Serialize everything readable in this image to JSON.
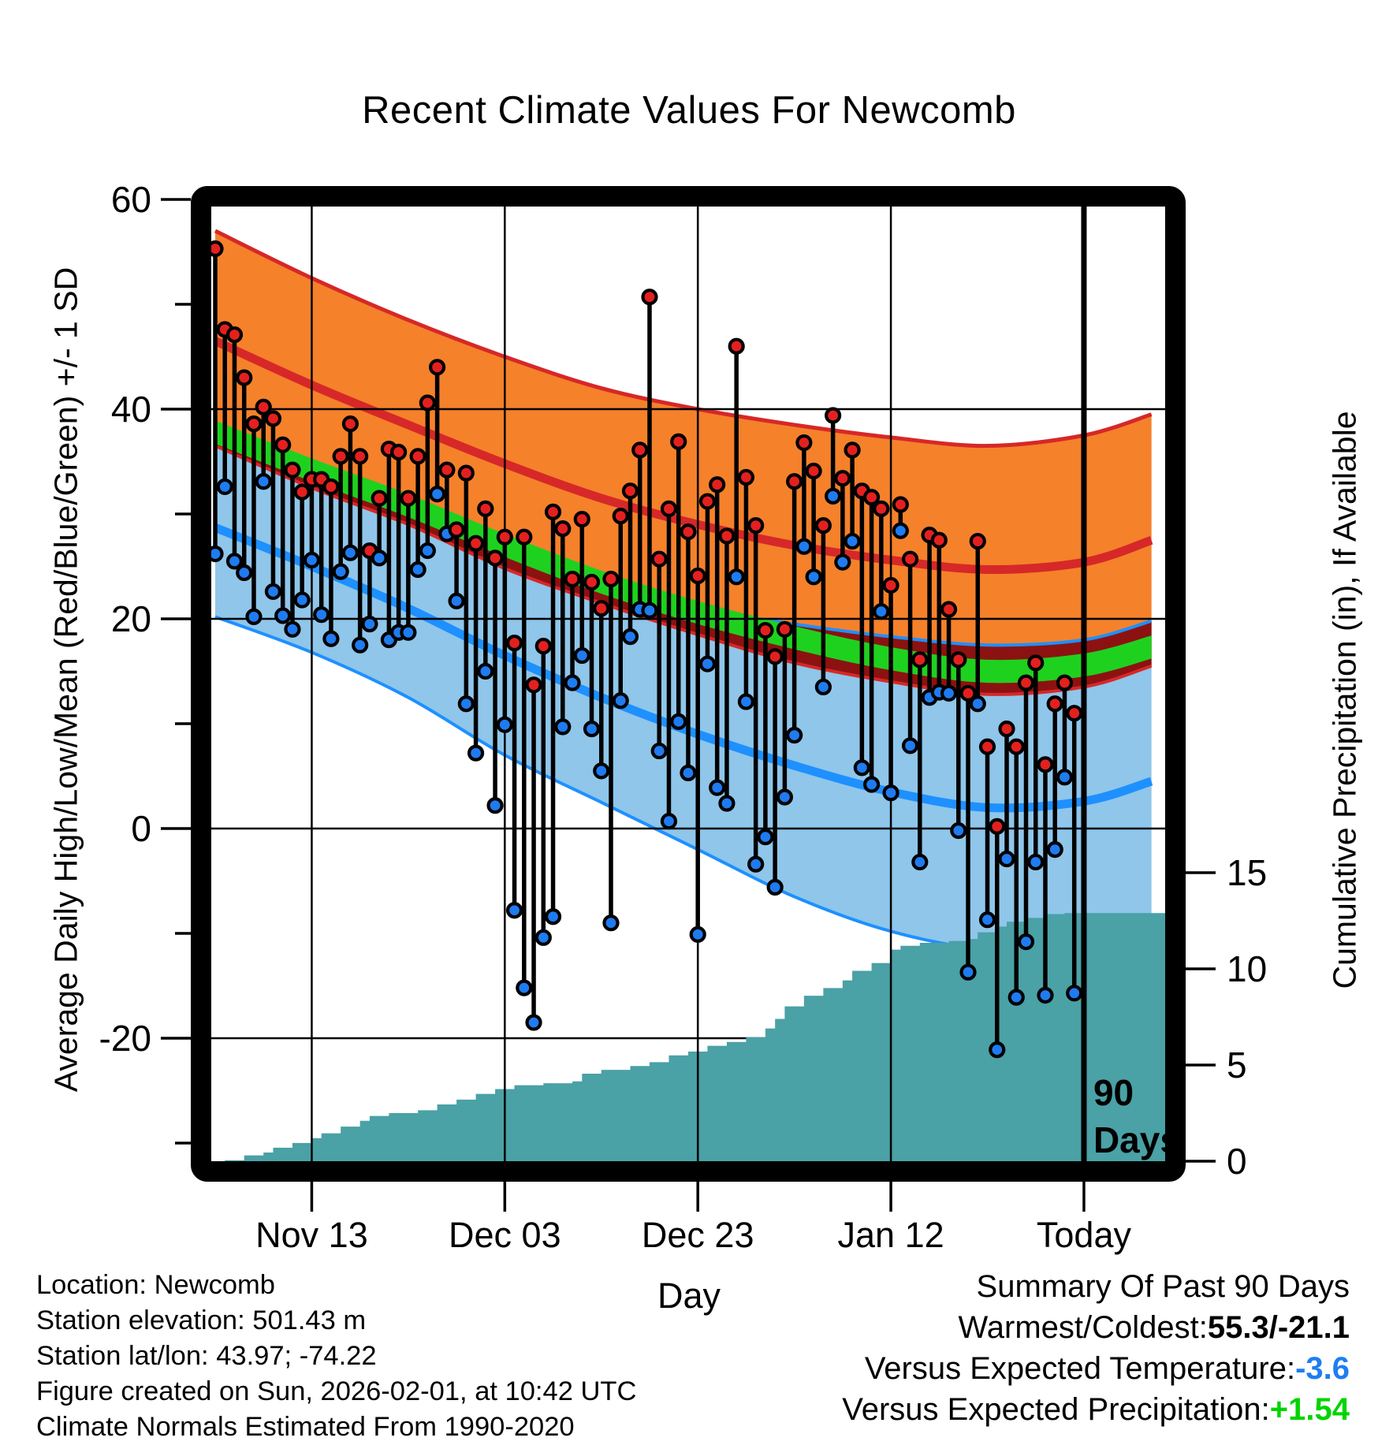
{
  "page": {
    "title": "Recent Climate Values For Newcomb"
  },
  "axes": {
    "x_label": "Day",
    "y_left_label": "Average Daily High/Low/Mean (Red/Blue/Green) +/- 1 SD",
    "y_right_label": "Cumulative Precipitation (in), If Available",
    "x_ticks": [
      {
        "day": 10,
        "label": "Nov 13"
      },
      {
        "day": 30,
        "label": "Dec 03"
      },
      {
        "day": 50,
        "label": "Dec 23"
      },
      {
        "day": 70,
        "label": "Jan 12"
      },
      {
        "day": 90,
        "label": "Today"
      }
    ],
    "y_left_major": [
      60,
      40,
      20,
      0,
      -20
    ],
    "y_left_minor": [
      50,
      30,
      10,
      -10,
      -30
    ],
    "y_right_ticks": [
      15,
      10,
      5,
      0
    ]
  },
  "annotations": {
    "window_line_day": 90,
    "window_label_line1": "90",
    "window_label_line2": "Days"
  },
  "footer": {
    "location": "Location: Newcomb",
    "elevation": "Station elevation: 501.43 m",
    "latlon": "Station lat/lon: 43.97; -74.22",
    "created": "Figure created on Sun, 2026-02-01, at 10:42 UTC",
    "normals": "Climate Normals Estimated From 1990-2020"
  },
  "summary": {
    "header": "Summary Of Past 90 Days",
    "warmest_label": "Warmest/Coldest:",
    "warmest_value": "55.3/-21.1",
    "temp_label": "Versus Expected Temperature:",
    "temp_value": "-3.6",
    "precip_label": "Versus Expected Precipitation:",
    "precip_value": "+1.54"
  },
  "colors": {
    "orange_band": "#F5812B",
    "red_line": "#D62828",
    "dark_red_band": "#8C1211",
    "green_line": "#1FD11F",
    "light_blue_band": "#8FC6EA",
    "blue_line": "#1E90FF",
    "teal_precip": "#4AA1A6",
    "dot_red": "#E3201F",
    "dot_blue": "#1F7BF0",
    "grid": "#000000",
    "frame": "#000000",
    "summary_temp_value": "#1E7EF0",
    "summary_precip_value": "#00D400"
  },
  "chart_data": {
    "type": "line",
    "subtype": "daily high/low stem plot with climate-normal bands and cumulative precipitation area",
    "title": "Recent Climate Values For Newcomb",
    "xlabel": "Day",
    "ylabel_left": "Average Daily High/Low/Mean (Red/Blue/Green) +/- 1 SD",
    "ylabel_right": "Cumulative Precipitation (in), If Available",
    "x_domain_days": [
      0,
      97
    ],
    "ylim_left": [
      -31.5,
      60.5
    ],
    "y_right_ticks": [
      0,
      5,
      10,
      15
    ],
    "grid": true,
    "legend": "none",
    "daily": {
      "highs": [
        55.3,
        47.6,
        47.1,
        43.0,
        38.6,
        40.2,
        39.1,
        36.6,
        34.2,
        32.1,
        33.3,
        33.3,
        32.6,
        35.5,
        38.6,
        35.5,
        26.5,
        31.5,
        36.2,
        35.9,
        31.5,
        35.5,
        40.6,
        44.0,
        34.2,
        28.5,
        33.9,
        27.2,
        30.5,
        25.8,
        27.8,
        17.7,
        27.8,
        13.7,
        17.4,
        30.2,
        28.6,
        23.8,
        29.5,
        23.5,
        21.0,
        23.8,
        29.8,
        32.2,
        36.1,
        50.7,
        25.7,
        30.5,
        36.9,
        28.3,
        24.1,
        31.2,
        32.8,
        27.9,
        46.0,
        33.5,
        28.9,
        18.9,
        16.4,
        19.0,
        33.1,
        36.8,
        34.1,
        28.9,
        39.4,
        33.4,
        36.1,
        32.2,
        31.6,
        30.5,
        23.2,
        30.9,
        25.7,
        16.1,
        28.0,
        27.5,
        20.9,
        16.1,
        12.9,
        27.4,
        7.8,
        0.2,
        9.5,
        7.8,
        13.9,
        15.8,
        6.1,
        11.9,
        13.9,
        11.0
      ],
      "lows": [
        26.2,
        32.6,
        25.5,
        24.4,
        20.2,
        33.1,
        22.6,
        20.3,
        19.0,
        21.8,
        25.6,
        20.4,
        18.1,
        24.5,
        26.3,
        17.5,
        19.5,
        25.8,
        18.0,
        18.7,
        18.7,
        24.7,
        26.5,
        31.9,
        28.1,
        21.7,
        11.9,
        7.2,
        15.0,
        2.2,
        9.9,
        -7.8,
        -15.2,
        -18.5,
        -10.4,
        -8.4,
        9.7,
        13.9,
        16.5,
        9.5,
        5.5,
        -9.0,
        12.2,
        18.3,
        20.9,
        20.8,
        7.4,
        0.7,
        10.2,
        5.3,
        -10.1,
        15.7,
        3.9,
        2.4,
        24.0,
        12.1,
        -3.4,
        -0.8,
        -5.6,
        3.0,
        8.9,
        26.9,
        24.0,
        13.5,
        31.7,
        25.4,
        27.4,
        5.8,
        4.2,
        20.7,
        3.4,
        28.4,
        7.9,
        -3.2,
        12.5,
        13.0,
        12.9,
        -0.2,
        -13.7,
        11.9,
        -8.7,
        -21.1,
        -2.9,
        -16.1,
        -10.8,
        -3.2,
        -15.9,
        -2.0,
        4.9,
        -15.7
      ]
    },
    "normals": {
      "days": [
        0,
        10,
        20,
        30,
        40,
        50,
        60,
        70,
        80,
        90,
        97
      ],
      "high_plus_1sd": [
        57.0,
        52.5,
        48.5,
        45.0,
        42.0,
        40.0,
        38.5,
        37.3,
        36.5,
        37.5,
        39.5
      ],
      "high_mean": [
        46.5,
        42.3,
        38.5,
        34.8,
        31.5,
        29.0,
        27.0,
        25.6,
        24.7,
        25.4,
        27.5
      ],
      "high_minus_1sd": [
        36.5,
        32.5,
        29.0,
        24.8,
        21.5,
        18.5,
        15.8,
        14.0,
        12.8,
        13.5,
        15.5
      ],
      "mean": [
        37.8,
        34.2,
        30.8,
        27.0,
        23.5,
        20.6,
        18.2,
        16.2,
        15.0,
        15.6,
        17.3
      ],
      "low_plus_1sd": [
        38.0,
        34.8,
        30.5,
        27.0,
        23.5,
        21.0,
        19.5,
        18.3,
        17.5,
        18.0,
        19.8
      ],
      "low_mean": [
        28.7,
        25.0,
        21.0,
        16.5,
        12.5,
        9.0,
        6.0,
        3.5,
        2.0,
        2.6,
        4.5
      ],
      "low_minus_1sd": [
        20.2,
        16.8,
        12.5,
        7.0,
        2.5,
        -2.0,
        -6.5,
        -9.8,
        -11.5,
        -11.0,
        -9.5
      ]
    },
    "precip_cumulative": [
      [
        0,
        0
      ],
      [
        1,
        0.05
      ],
      [
        3,
        0.3
      ],
      [
        5,
        0.45
      ],
      [
        6,
        0.7
      ],
      [
        8,
        0.95
      ],
      [
        10,
        1.2
      ],
      [
        11,
        1.45
      ],
      [
        13,
        1.8
      ],
      [
        15,
        2.1
      ],
      [
        16,
        2.35
      ],
      [
        18,
        2.5
      ],
      [
        21,
        2.65
      ],
      [
        23,
        2.95
      ],
      [
        25,
        3.2
      ],
      [
        27,
        3.5
      ],
      [
        29,
        3.75
      ],
      [
        31,
        3.95
      ],
      [
        34,
        4.05
      ],
      [
        37,
        4.15
      ],
      [
        38,
        4.55
      ],
      [
        40,
        4.75
      ],
      [
        43,
        4.95
      ],
      [
        45,
        5.15
      ],
      [
        47,
        5.5
      ],
      [
        49,
        5.7
      ],
      [
        51,
        6.0
      ],
      [
        53,
        6.2
      ],
      [
        55,
        6.45
      ],
      [
        57,
        6.9
      ],
      [
        58,
        7.4
      ],
      [
        59,
        8.05
      ],
      [
        61,
        8.6
      ],
      [
        63,
        9.0
      ],
      [
        65,
        9.4
      ],
      [
        66,
        9.9
      ],
      [
        68,
        10.3
      ],
      [
        70,
        11.0
      ],
      [
        71,
        11.2
      ],
      [
        73,
        11.35
      ],
      [
        76,
        11.45
      ],
      [
        78,
        11.55
      ],
      [
        79,
        11.9
      ],
      [
        81,
        12.2
      ],
      [
        82,
        12.45
      ],
      [
        84,
        12.65
      ],
      [
        86,
        12.85
      ],
      [
        88,
        12.9
      ],
      [
        97,
        12.9
      ]
    ]
  }
}
